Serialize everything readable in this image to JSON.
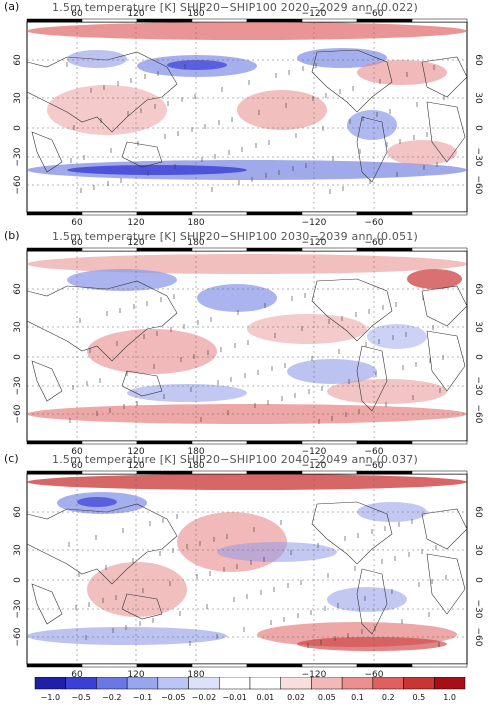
{
  "panels": [
    {
      "letter": "(a)",
      "title": "1.5m temperature [K] SHIP20−SHIP100 2020−2029 ann (0.022)"
    },
    {
      "letter": "(b)",
      "title": "1.5m temperature [K] SHIP20−SHIP100 2030−2039 ann (0.051)"
    },
    {
      "letter": "(c)",
      "title": "1.5m temperature [K] SHIP20−SHIP100 2040−2049 ann (0.037)"
    }
  ],
  "lon_labels": [
    "60",
    "120",
    "180",
    "−120",
    "−60"
  ],
  "lat_labels_left": [
    "60",
    "30",
    "0",
    "−30",
    "−60"
  ],
  "lat_labels_right": [
    "60",
    "30",
    "0",
    "−30",
    "−60"
  ],
  "colorbar": {
    "labels": [
      "−1.0",
      "−0.5",
      "−0.2",
      "−0.1",
      "−0.05",
      "−0.02",
      "−0.01",
      "0.01",
      "0.02",
      "0.05",
      "0.1",
      "0.2",
      "0.5",
      "1.0"
    ],
    "colors": [
      "#1f1fa8",
      "#3a3fd6",
      "#6a78e6",
      "#98a6ee",
      "#bcc6f4",
      "#dde2f9",
      "#ffffff",
      "#ffffff",
      "#f9dede",
      "#f3b9b9",
      "#eb8f8f",
      "#e06060",
      "#c93434",
      "#a50f15"
    ]
  },
  "colors": {
    "warm": "#e88a8a",
    "warm_strong": "#c93434",
    "cool": "#8f9be8",
    "cool_strong": "#3a3fd6",
    "coast": "#333333"
  }
}
